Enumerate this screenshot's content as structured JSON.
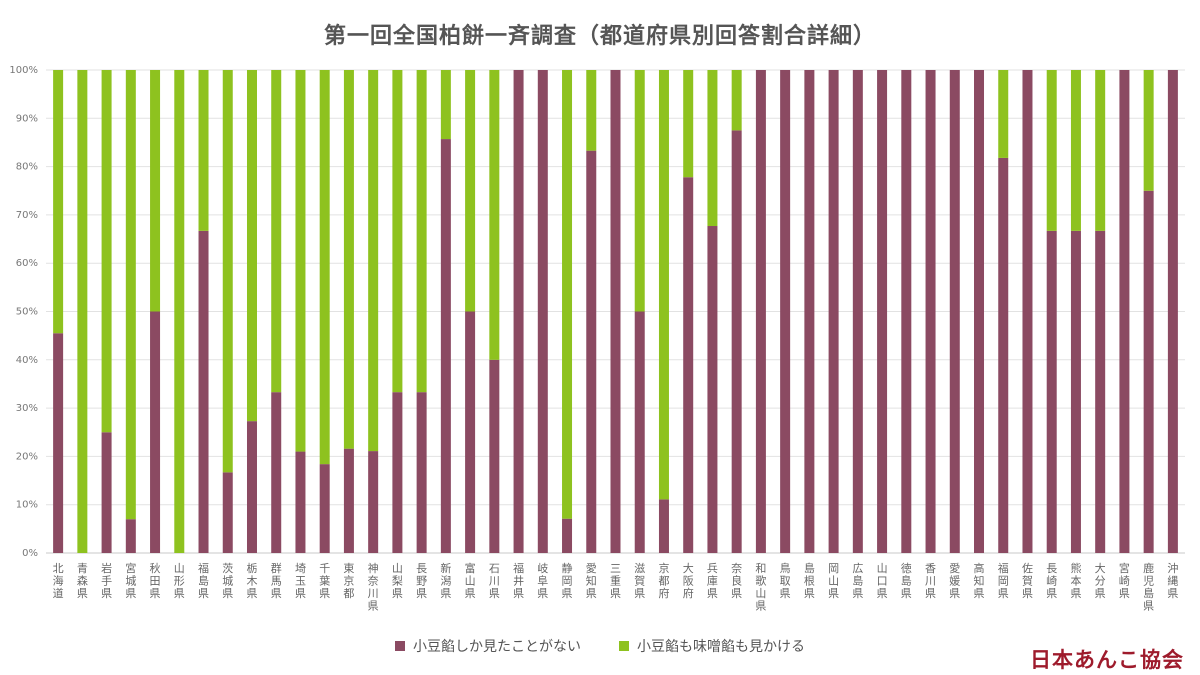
{
  "chart_data": {
    "type": "bar",
    "stacked": true,
    "title": "第一回全国柏餅一斉調査（都道府県別回答割合詳細）",
    "xlabel": "",
    "ylabel": "",
    "ylim": [
      0,
      100
    ],
    "yticks": [
      "0%",
      "10%",
      "20%",
      "30%",
      "40%",
      "50%",
      "60%",
      "70%",
      "80%",
      "90%",
      "100%"
    ],
    "grid": true,
    "legend_position": "bottom",
    "categories": [
      "北海道",
      "青森県",
      "岩手県",
      "宮城県",
      "秋田県",
      "山形県",
      "福島県",
      "茨城県",
      "栃木県",
      "群馬県",
      "埼玉県",
      "千葉県",
      "東京都",
      "神奈川県",
      "山梨県",
      "長野県",
      "新潟県",
      "富山県",
      "石川県",
      "福井県",
      "岐阜県",
      "静岡県",
      "愛知県",
      "三重県",
      "滋賀県",
      "京都府",
      "大阪府",
      "兵庫県",
      "奈良県",
      "和歌山県",
      "鳥取県",
      "島根県",
      "岡山県",
      "広島県",
      "山口県",
      "徳島県",
      "香川県",
      "愛媛県",
      "高知県",
      "福岡県",
      "佐賀県",
      "長崎県",
      "熊本県",
      "大分県",
      "宮崎県",
      "鹿児島県",
      "沖縄県"
    ],
    "series": [
      {
        "name": "小豆餡しか見たことがない",
        "color": "#8b4a62",
        "values": [
          45.5,
          0,
          25,
          7,
          50,
          0,
          66.7,
          16.7,
          27.3,
          33.3,
          21,
          18.4,
          21.6,
          21.1,
          33.3,
          33.3,
          85.7,
          50,
          40,
          100,
          100,
          7.1,
          83.3,
          100,
          50,
          11.1,
          77.8,
          67.7,
          87.5,
          100,
          100,
          100,
          100,
          100,
          100,
          100,
          100,
          100,
          100,
          81.8,
          100,
          66.7,
          66.7,
          66.7,
          100,
          75,
          100
        ]
      },
      {
        "name": "小豆餡も味噌餡も見かける",
        "color": "#8ec21f",
        "values": [
          54.5,
          100,
          75,
          93,
          50,
          100,
          33.3,
          83.3,
          72.7,
          66.7,
          79,
          81.6,
          78.4,
          78.9,
          66.7,
          66.7,
          14.3,
          50,
          60,
          0,
          0,
          92.9,
          16.7,
          0,
          50,
          88.9,
          22.2,
          32.3,
          12.5,
          0,
          0,
          0,
          0,
          0,
          0,
          0,
          0,
          0,
          0,
          18.2,
          0,
          33.3,
          33.3,
          33.3,
          0,
          25,
          0
        ]
      }
    ]
  },
  "brand": {
    "text": "日本あんこ協会",
    "color": "#9e1b2c"
  }
}
